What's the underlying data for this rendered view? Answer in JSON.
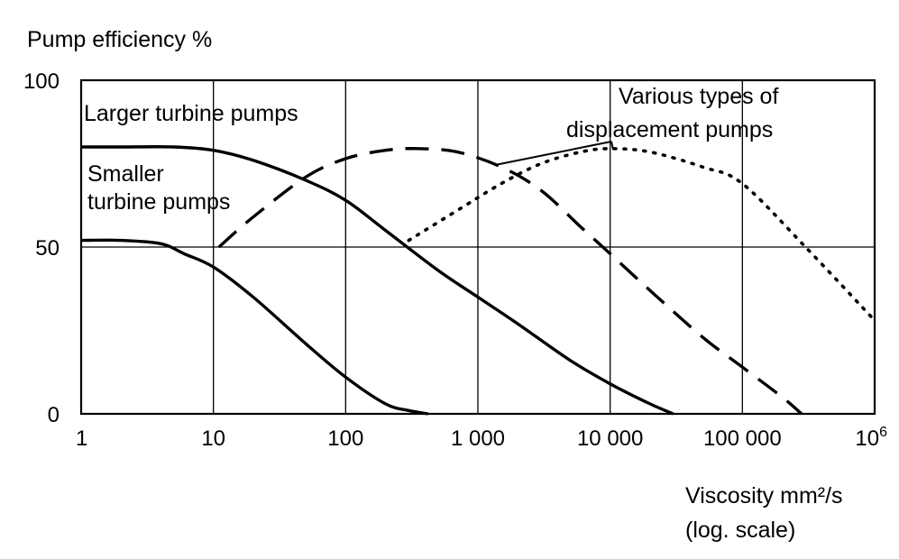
{
  "chart_data": {
    "type": "line",
    "ylabel": "Pump efficiency %",
    "xlabel_line1": "Viscosity mm²/s",
    "xlabel_line2": "(log. scale)",
    "x_scale": "log",
    "xlim": [
      1,
      1000000
    ],
    "ylim": [
      0,
      100
    ],
    "grid": true,
    "x_ticks": [
      {
        "value": 1,
        "label": "1"
      },
      {
        "value": 10,
        "label": "10"
      },
      {
        "value": 100,
        "label": "100"
      },
      {
        "value": 1000,
        "label": "1 000"
      },
      {
        "value": 10000,
        "label": "10 000"
      },
      {
        "value": 100000,
        "label": "100 000"
      },
      {
        "value": 1000000,
        "label": "10",
        "sup": "6"
      }
    ],
    "y_ticks": [
      {
        "value": 0,
        "label": "0"
      },
      {
        "value": 50,
        "label": "50"
      },
      {
        "value": 100,
        "label": "100"
      }
    ],
    "annotations": {
      "larger": "Larger turbine pumps",
      "smaller_line1": "Smaller",
      "smaller_line2": "turbine pumps",
      "various_line1": "Various types of",
      "various_line2": "displacement pumps"
    },
    "series": [
      {
        "key": "larger_turbine",
        "style": "solid",
        "x": [
          1,
          2,
          5,
          10,
          20,
          50,
          100,
          200,
          500,
          1000,
          2000,
          5000,
          10000,
          20000,
          30000
        ],
        "y": [
          80,
          80,
          80,
          79,
          76,
          70,
          64,
          55,
          43,
          35,
          27,
          16,
          9,
          3,
          0
        ]
      },
      {
        "key": "smaller_turbine",
        "style": "solid",
        "x": [
          1,
          2,
          4,
          6,
          10,
          20,
          50,
          100,
          200,
          300,
          420
        ],
        "y": [
          52,
          52,
          51,
          48,
          44,
          35,
          21,
          11,
          3,
          1,
          0
        ]
      },
      {
        "key": "displacement_1",
        "style": "dashed",
        "x": [
          11,
          20,
          50,
          100,
          200,
          350,
          700,
          1500,
          3000,
          6000,
          10000,
          20000,
          50000,
          100000,
          200000,
          280000
        ],
        "y": [
          50,
          59,
          71,
          76.5,
          79,
          79.5,
          78.5,
          74,
          67,
          56,
          48,
          37,
          23,
          14,
          5,
          0
        ]
      },
      {
        "key": "displacement_2",
        "style": "dotted",
        "x": [
          300,
          700,
          1500,
          3000,
          6000,
          10000,
          20000,
          50000,
          100000,
          300000,
          1000000
        ],
        "y": [
          52,
          61,
          69,
          75,
          78.5,
          79.5,
          78.5,
          74,
          69,
          50,
          28
        ]
      }
    ]
  }
}
